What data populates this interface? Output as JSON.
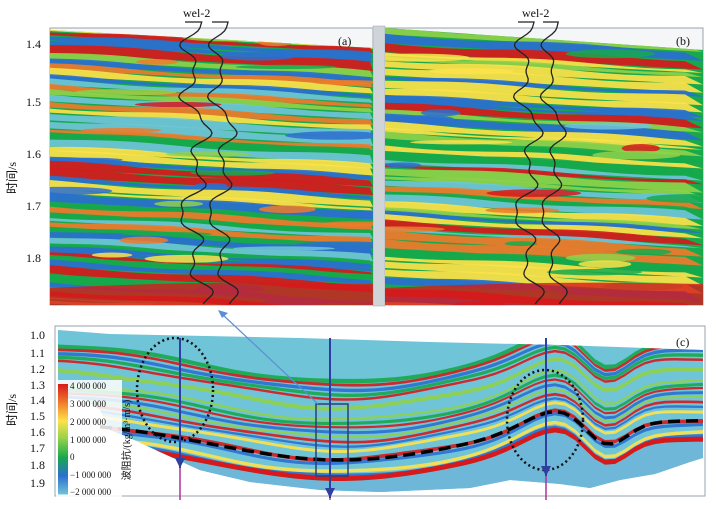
{
  "chart_data": {
    "type": "heatmap",
    "panels": [
      {
        "label": "(a)",
        "well": "wel-2",
        "ylabel": "时间/s",
        "yticks": [
          "1.4",
          "1.5",
          "1.6",
          "1.7",
          "1.8"
        ],
        "ylim": [
          1.38,
          1.9
        ]
      },
      {
        "label": "(b)",
        "well": "wel-2",
        "ylim": [
          1.38,
          1.9
        ]
      },
      {
        "label": "(c)",
        "ylabel": "时间/s",
        "yticks": [
          "1.0",
          "1.1",
          "1.2",
          "1.3",
          "1.4",
          "1.5",
          "1.6",
          "1.7",
          "1.8",
          "1.9"
        ],
        "ylim": [
          0.95,
          1.95
        ],
        "colorbar": {
          "title": "波阻抗/(kg/m³·m/s)",
          "ticks": [
            "4 000 000",
            "3 000 000",
            "2 000 000",
            "1 000 000",
            "0",
            "−1 000 000",
            "−2 000 000"
          ],
          "values": [
            4000000,
            3000000,
            2000000,
            1000000,
            0,
            -1000000,
            -2000000
          ],
          "colors": [
            "#d7191c",
            "#f07a2a",
            "#fee24a",
            "#8fd14a",
            "#17a94c",
            "#2b6fd0",
            "#70c4d8"
          ]
        }
      }
    ]
  },
  "colors": {
    "red": "#d7191c",
    "orange": "#f07a2a",
    "yellow": "#fee24a",
    "green": "#17a94c",
    "lightgreen": "#8fd14a",
    "blue": "#2b6fd0",
    "cyan": "#70c4d8",
    "marker": "#2e3fa0"
  }
}
